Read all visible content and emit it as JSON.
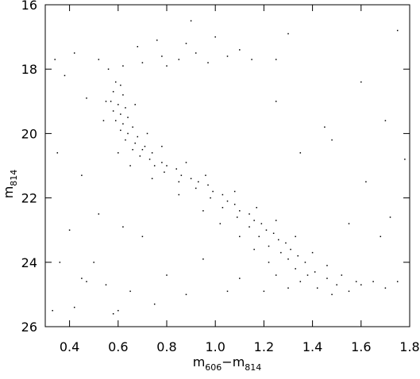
{
  "chart_data": {
    "type": "scatter",
    "x_label_parts": [
      "m",
      "606",
      "−m",
      "814"
    ],
    "y_label_parts": [
      "m",
      "814"
    ],
    "xlim": [
      0.3,
      1.8
    ],
    "ylim": [
      16,
      26
    ],
    "y_inverted": true,
    "xticks": [
      0.4,
      0.6,
      0.8,
      {
        "value": 1,
        "label": "1.0"
      },
      1.2,
      1.4,
      1.6,
      1.8
    ],
    "yticks": [
      16,
      18,
      20,
      22,
      24,
      26
    ],
    "color": "#000000",
    "x": [
      0.59,
      0.61,
      0.58,
      0.62,
      0.57,
      0.6,
      0.63,
      0.58,
      0.61,
      0.64,
      0.59,
      0.62,
      0.66,
      0.61,
      0.64,
      0.68,
      0.63,
      0.67,
      0.71,
      0.66,
      0.7,
      0.74,
      0.69,
      0.73,
      0.78,
      0.75,
      0.8,
      0.84,
      0.79,
      0.86,
      0.9,
      0.85,
      0.93,
      0.97,
      0.92,
      0.99,
      1.03,
      0.98,
      1.05,
      1.08,
      1.03,
      1.1,
      1.14,
      1.09,
      1.16,
      1.19,
      1.14,
      1.21,
      1.24,
      1.18,
      1.26,
      1.29,
      1.22,
      1.31,
      1.27,
      1.34,
      1.3,
      1.37,
      1.33,
      1.41,
      1.38,
      1.46,
      1.35,
      1.5,
      1.42,
      1.55,
      1.48,
      1.6,
      1.65,
      0.55,
      0.67,
      0.54,
      0.72,
      0.6,
      0.78,
      0.65,
      0.88,
      0.74,
      0.96,
      0.85,
      1.08,
      0.95,
      1.17,
      1.02,
      1.25,
      1.1,
      1.33,
      1.16,
      1.4,
      1.22,
      1.46,
      1.25,
      1.52,
      1.3,
      1.58,
      1.2,
      1.7,
      1.1,
      1.75,
      0.56,
      0.62,
      0.7,
      0.78,
      0.85,
      0.92,
      0.97,
      1.05,
      1.1,
      1.15,
      1.25,
      0.68,
      0.88,
      0.8,
      0.76,
      0.9,
      0.52,
      0.34,
      0.42,
      0.38,
      0.47,
      0.35,
      0.45,
      0.52,
      0.4,
      0.36,
      0.45,
      0.33,
      0.42,
      0.58,
      0.55,
      0.8,
      0.95,
      0.7,
      0.62,
      1.0,
      1.25,
      1.35,
      1.45,
      1.6,
      1.75,
      1.78,
      1.7,
      1.62,
      1.72,
      1.68,
      1.55,
      1.48,
      1.3,
      0.5,
      0.6,
      0.47,
      1.05,
      0.88,
      0.75,
      0.65
    ],
    "values": [
      18.4,
      18.5,
      18.7,
      18.8,
      19.0,
      19.1,
      19.2,
      19.3,
      19.4,
      19.5,
      19.6,
      19.7,
      19.8,
      19.9,
      20.0,
      20.1,
      20.2,
      20.3,
      20.4,
      20.5,
      20.5,
      20.6,
      20.7,
      20.8,
      20.9,
      21.0,
      21.0,
      21.1,
      21.2,
      21.3,
      21.4,
      21.5,
      21.5,
      21.6,
      21.7,
      21.8,
      21.9,
      22.0,
      22.1,
      22.2,
      22.3,
      22.4,
      22.5,
      22.6,
      22.7,
      22.8,
      22.9,
      23.0,
      23.1,
      23.2,
      23.3,
      23.4,
      23.5,
      23.6,
      23.7,
      23.8,
      23.9,
      24.0,
      24.2,
      24.3,
      24.4,
      24.5,
      24.6,
      24.7,
      24.8,
      24.9,
      25.0,
      24.7,
      24.6,
      19.0,
      19.1,
      19.6,
      20.0,
      20.6,
      20.4,
      21.0,
      20.9,
      21.4,
      21.3,
      21.9,
      21.8,
      22.4,
      22.3,
      22.8,
      22.7,
      23.2,
      23.2,
      23.6,
      23.7,
      24.0,
      24.1,
      24.4,
      24.4,
      24.8,
      24.6,
      24.9,
      24.8,
      24.5,
      24.6,
      18.0,
      17.9,
      17.8,
      17.6,
      17.7,
      17.5,
      17.8,
      17.6,
      17.4,
      17.7,
      17.7,
      17.3,
      17.2,
      17.9,
      17.1,
      16.5,
      17.7,
      17.7,
      17.5,
      18.2,
      18.9,
      20.6,
      21.3,
      22.5,
      23.0,
      24.0,
      24.5,
      25.5,
      25.4,
      25.6,
      24.7,
      24.4,
      23.9,
      23.2,
      22.9,
      17.0,
      19.0,
      20.6,
      19.8,
      18.4,
      16.8,
      20.8,
      19.6,
      21.5,
      22.6,
      23.2,
      22.8,
      20.2,
      16.9,
      24.0,
      25.5,
      24.6,
      24.9,
      25.0,
      25.3,
      24.9
    ]
  }
}
